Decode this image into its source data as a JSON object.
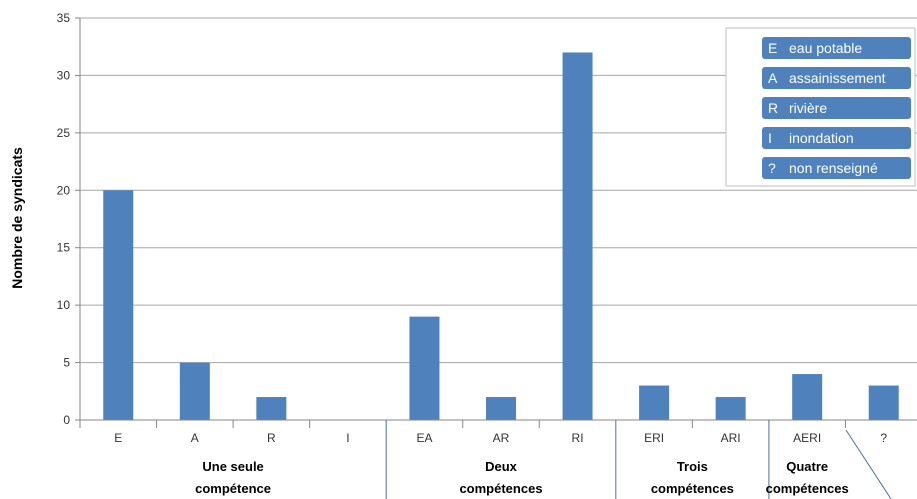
{
  "chart_data": {
    "type": "bar",
    "ylabel": "Nombre de syndicats",
    "ylim": [
      0,
      35
    ],
    "yticks": [
      0,
      5,
      10,
      15,
      20,
      25,
      30,
      35
    ],
    "categories": [
      "E",
      "A",
      "R",
      "I",
      "EA",
      "AR",
      "RI",
      "ERI",
      "ARI",
      "AERI",
      "?"
    ],
    "values": [
      20,
      5,
      2,
      0,
      9,
      2,
      32,
      3,
      2,
      4,
      3
    ],
    "groups": [
      {
        "line1": "Une seule",
        "line2": "compétence"
      },
      {
        "line1": "Deux",
        "line2": "compétences"
      },
      {
        "line1": "Trois",
        "line2": "compétences"
      },
      {
        "line1": "Quatre",
        "line2": "compétences"
      }
    ],
    "legend": [
      {
        "code": "E",
        "label": "eau potable"
      },
      {
        "code": "A",
        "label": "assainissement"
      },
      {
        "code": "R",
        "label": "rivière"
      },
      {
        "code": "I",
        "label": "inondation"
      },
      {
        "code": "?",
        "label": "non renseigné"
      }
    ],
    "legend_position": "top-right",
    "grid": true,
    "bar_color": "#4f81bd"
  }
}
